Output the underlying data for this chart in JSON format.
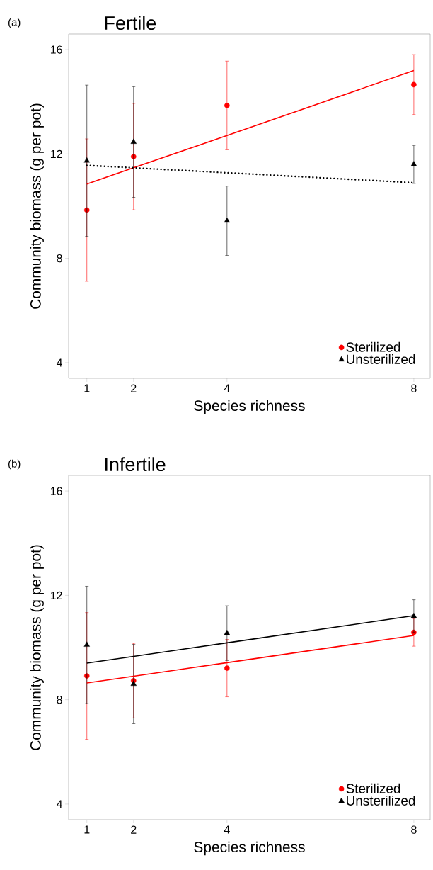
{
  "chart_data": [
    {
      "type": "scatter",
      "title": "Fertile",
      "annotations": [
        "(a)"
      ],
      "xlabel": "Species richness",
      "ylabel": "Community biomass (g per pot)",
      "x": [
        1,
        2,
        4,
        8
      ],
      "xlim": [
        0.61,
        8.35
      ],
      "ylim": [
        3.4,
        16.6
      ],
      "xticks": [
        1,
        2,
        4,
        8
      ],
      "yticks": [
        4,
        8,
        12,
        16
      ],
      "legend": "bottom right",
      "series": [
        {
          "name": "Sterilized",
          "color": "#ff0000",
          "marker": "circle",
          "values": [
            9.85,
            11.9,
            13.86,
            14.66
          ],
          "errors": [
            2.73,
            2.04,
            1.7,
            1.15
          ]
        },
        {
          "name": "Unsterilized",
          "color": "#000000",
          "marker": "triangle",
          "values": [
            11.74,
            12.46,
            9.44,
            11.6
          ],
          "errors": [
            2.9,
            2.12,
            1.33,
            0.73
          ]
        },
        {
          "type": "line",
          "color": "#ff0000",
          "line_style": "solid",
          "values": [
            10.85,
            11.47,
            12.71,
            15.2
          ]
        },
        {
          "type": "line",
          "color": "#000000",
          "line_style": "dotted",
          "values": [
            11.56,
            11.47,
            11.28,
            10.9
          ]
        }
      ]
    },
    {
      "type": "scatter",
      "title": "Infertile",
      "annotations": [
        "(b)"
      ],
      "xlabel": "Species richness",
      "ylabel": "Community biomass (g per pot)",
      "x": [
        1,
        2,
        4,
        8
      ],
      "xlim": [
        0.61,
        8.35
      ],
      "ylim": [
        3.4,
        16.6
      ],
      "xticks": [
        1,
        2,
        4,
        8
      ],
      "yticks": [
        4,
        8,
        12,
        16
      ],
      "legend": "bottom right",
      "series": [
        {
          "name": "Sterilized",
          "color": "#ff0000",
          "marker": "circle",
          "values": [
            8.91,
            8.73,
            9.21,
            10.58
          ],
          "errors": [
            2.43,
            1.43,
            1.1,
            0.53
          ]
        },
        {
          "name": "Unsterilized",
          "color": "#000000",
          "marker": "triangle",
          "values": [
            10.1,
            8.6,
            10.55,
            11.2
          ],
          "errors": [
            2.25,
            1.52,
            1.05,
            0.63
          ]
        },
        {
          "type": "line",
          "color": "#ff0000",
          "line_style": "solid",
          "values": [
            8.64,
            8.9,
            9.42,
            10.46
          ]
        },
        {
          "type": "line",
          "color": "#000000",
          "line_style": "solid",
          "values": [
            9.4,
            9.66,
            10.18,
            11.22
          ]
        }
      ]
    }
  ]
}
